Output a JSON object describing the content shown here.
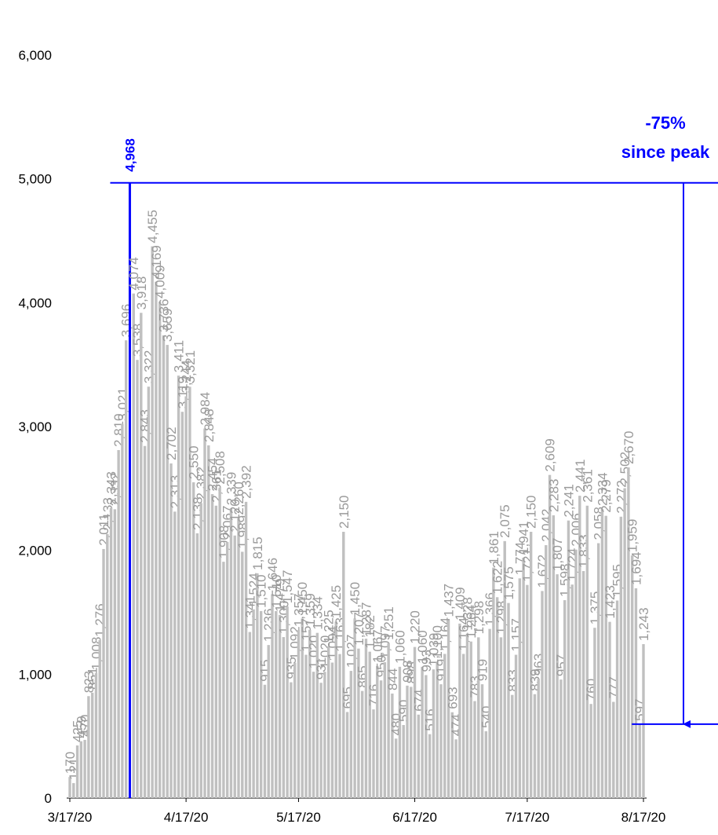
{
  "chart_data": {
    "type": "bar",
    "categories": [
      "3/17/20",
      null,
      null,
      null,
      null,
      null,
      null,
      null,
      null,
      null,
      null,
      null,
      null,
      null,
      null,
      null,
      null,
      null,
      null,
      null,
      null,
      null,
      null,
      null,
      null,
      null,
      null,
      null,
      null,
      null,
      null,
      "4/17/20",
      null,
      null,
      null,
      null,
      null,
      null,
      null,
      null,
      null,
      null,
      null,
      null,
      null,
      null,
      null,
      null,
      null,
      null,
      null,
      null,
      null,
      null,
      null,
      null,
      null,
      null,
      null,
      null,
      null,
      "5/17/20",
      null,
      null,
      null,
      null,
      null,
      null,
      null,
      null,
      null,
      null,
      null,
      null,
      null,
      null,
      null,
      null,
      null,
      null,
      null,
      null,
      null,
      null,
      null,
      null,
      null,
      null,
      null,
      null,
      null,
      null,
      "6/17/20",
      null,
      null,
      null,
      null,
      null,
      null,
      null,
      null,
      null,
      null,
      null,
      null,
      null,
      null,
      null,
      null,
      null,
      null,
      null,
      null,
      null,
      null,
      null,
      null,
      null,
      null,
      null,
      null,
      null,
      "7/17/20",
      null,
      null,
      null,
      null,
      null,
      null,
      null,
      null,
      null,
      null,
      null,
      null,
      null,
      null,
      null,
      null,
      null,
      null,
      null,
      null,
      null,
      null,
      null,
      null,
      null,
      null,
      null,
      null,
      null,
      null,
      "8/17/20"
    ],
    "values": [
      170,
      121,
      425,
      459,
      470,
      823,
      851,
      1008,
      1276,
      2011,
      2133,
      2343,
      2332,
      2810,
      3021,
      3696,
      4968,
      4074,
      3538,
      3918,
      2843,
      3322,
      4455,
      4169,
      4009,
      3736,
      3659,
      2702,
      2313,
      3411,
      3119,
      3244,
      3321,
      2550,
      2138,
      2382,
      2984,
      2848,
      2454,
      2361,
      2508,
      1908,
      2067,
      2339,
      2120,
      2260,
      1989,
      2392,
      1341,
      1524,
      1815,
      1510,
      915,
      1236,
      1646,
      1510,
      1479,
      1300,
      1547,
      935,
      1092,
      1357,
      1450,
      1157,
      1359,
      1020,
      1334,
      931,
      1020,
      1225,
      1094,
      1425,
      1163,
      2150,
      695,
      1027,
      1450,
      1207,
      865,
      1287,
      1182,
      716,
      1067,
      950,
      1097,
      1251,
      844,
      480,
      1060,
      590,
      908,
      898,
      1220,
      674,
      1060,
      993,
      516,
      1039,
      1100,
      919,
      1164,
      1437,
      693,
      474,
      1409,
      1164,
      1328,
      1264,
      783,
      1298,
      919,
      540,
      1366,
      1861,
      1622,
      1298,
      2075,
      1575,
      833,
      1157,
      1774,
      1941,
      1721,
      2150,
      839,
      963,
      1672,
      2042,
      2609,
      2283,
      1807,
      957,
      1598,
      2241,
      1724,
      2006,
      2441,
      1833,
      2361,
      760,
      1375,
      2058,
      2334,
      2279,
      1423,
      777,
      1595,
      2272,
      2502,
      2670,
      1959,
      1694,
      597,
      1243
    ],
    "value_labels": [
      "170",
      "121",
      "425",
      "459",
      "470",
      "823",
      "851",
      "1,008",
      "1,276",
      "2,011",
      "2,133",
      "2,343",
      "2,332",
      "2,810",
      "3,021",
      "3,696",
      "4,968",
      "4,074",
      "3,538",
      "3,918",
      "2,843",
      "3,322",
      "4,455",
      "4,169",
      "4,009",
      "3,736",
      "3,659",
      "2,702",
      "2,313",
      "3,411",
      "3,119",
      "3,244",
      "3,321",
      "2,550",
      "2,138",
      "2,382",
      "2,984",
      "2,848",
      "2,454",
      "2,361",
      "2,508",
      "1,908",
      "2,067",
      "2,339",
      "2,120",
      "2,260",
      "1,989",
      "2,392",
      "1,341",
      "1,524",
      "1,815",
      "1,510",
      "915",
      "1,236",
      "1,646",
      "1,510",
      "1,479",
      "1,300",
      "1,547",
      "935",
      "1,092",
      "1,357",
      "1,450",
      "1,157",
      "1,359",
      "1,020",
      "1,334",
      "931",
      "1,020",
      "1,225",
      "1,094",
      "1,425",
      "1,163",
      "2,150",
      "695",
      "1,027",
      "1,450",
      "1,207",
      "865",
      "1,287",
      "1,182",
      "716",
      "1,067",
      "950",
      "1,097",
      "1,251",
      "844",
      "480",
      "1,060",
      "590",
      "908",
      "898",
      "1,220",
      "674",
      "1,060",
      "993",
      "516",
      "1,039",
      "1,100",
      "919",
      "1,164",
      "1,437",
      "693",
      "474",
      "1,409",
      "1,164",
      "1,328",
      "1,264",
      "783",
      "1,298",
      "919",
      "540",
      "1,366",
      "1,861",
      "1,622",
      "1,298",
      "2,075",
      "1,575",
      "833",
      "1,157",
      "1,774",
      "1,941",
      "1,721",
      "2,150",
      "839",
      "963",
      "1,672",
      "2,042",
      "2,609",
      "2,283",
      "1,807",
      "957",
      "1,598",
      "2,241",
      "1,724",
      "2,006",
      "2,441",
      "1,833",
      "2,361",
      "760",
      "1,375",
      "2,058",
      "2,334",
      "2,279",
      "1,423",
      "777",
      "1,595",
      "2,272",
      "2,502",
      "2,670",
      "1,959",
      "1,694",
      "597",
      "1,243"
    ],
    "color": "#c0c0c0",
    "peak_color": "#0000ff",
    "ylim": [
      0,
      6000
    ],
    "yticks": [
      0,
      {
        "value": 1000,
        "label": "1,000"
      },
      {
        "value": 2000,
        "label": "2,000"
      },
      {
        "value": 3000,
        "label": "3,000"
      },
      {
        "value": 4000,
        "label": "4,000"
      },
      {
        "value": 5000,
        "label": "5,000"
      },
      {
        "value": 6000,
        "label": "6,000"
      }
    ],
    "grid": false,
    "annotation": [
      "-75%",
      "since peak"
    ]
  }
}
